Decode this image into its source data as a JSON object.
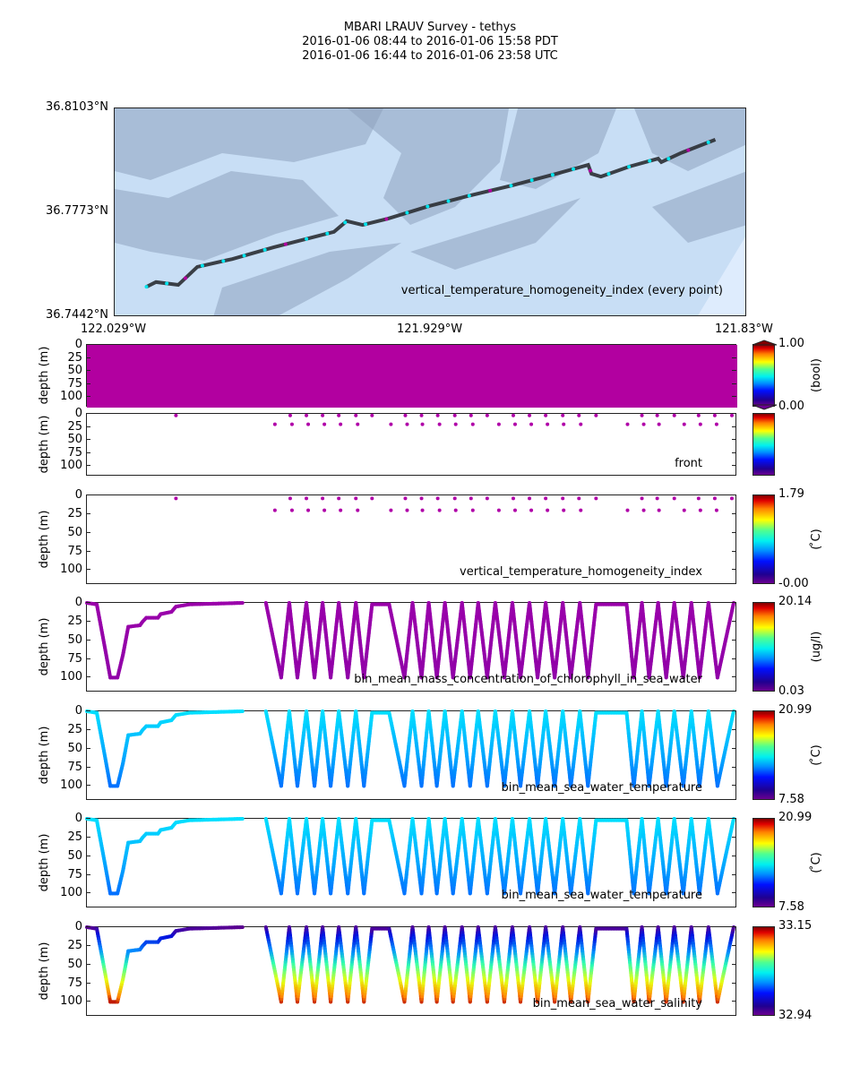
{
  "title": {
    "line1": "MBARI LRAUV Survey - tethys",
    "line2": "2016-01-06 08:44  to  2016-01-06 15:58 PDT",
    "line3": "2016-01-06 16:44  to  2016-01-06 23:58 UTC"
  },
  "colors": {
    "map_water": "#c8def5",
    "map_shade": "#8ea3bd",
    "track": "#2a2e33",
    "marker_cyan": "#00e5ee",
    "marker_magenta": "#b000a0",
    "bool_fill": "#b200a0",
    "dot": "#b000a8"
  },
  "depth_ticks": [
    "0",
    "25",
    "50",
    "75",
    "100"
  ],
  "depth_label": "depth (m)",
  "chart_data": {
    "map": {
      "type": "line",
      "lat_ticks": [
        "36.8103°N",
        "36.7773°N",
        "36.7442°N"
      ],
      "lon_ticks": [
        "122.029°W",
        "121.929°W",
        "121.83°W"
      ],
      "lon_range": [
        -122.029,
        -121.83
      ],
      "lat_range": [
        36.7442,
        36.8103
      ],
      "label": "vertical_temperature_homogeneity_index (every point)",
      "track": [
        [
          -122.019,
          36.7538
        ],
        [
          -122.016,
          36.7553
        ],
        [
          -122.009,
          36.7544
        ],
        [
          -122.003,
          36.7601
        ],
        [
          -121.992,
          36.7626
        ],
        [
          -121.979,
          36.7663
        ],
        [
          -121.96,
          36.7712
        ],
        [
          -121.956,
          36.7746
        ],
        [
          -121.951,
          36.7734
        ],
        [
          -121.943,
          36.7754
        ],
        [
          -121.93,
          36.7794
        ],
        [
          -121.918,
          36.7825
        ],
        [
          -121.904,
          36.7859
        ],
        [
          -121.89,
          36.7896
        ],
        [
          -121.88,
          36.7924
        ],
        [
          -121.879,
          36.7896
        ],
        [
          -121.876,
          36.7887
        ],
        [
          -121.867,
          36.7919
        ],
        [
          -121.858,
          36.7944
        ],
        [
          -121.857,
          36.7933
        ],
        [
          -121.851,
          36.7961
        ],
        [
          -121.84,
          36.8004
        ]
      ]
    },
    "time_range_h": [
      0,
      7.23
    ],
    "depth_range": [
      0,
      120
    ],
    "trajectory": {
      "time_h": [
        0,
        0.11,
        0.2,
        0.26,
        0.34,
        0.4,
        0.46,
        0.59,
        0.62,
        0.66,
        0.79,
        0.82,
        0.94,
        0.99,
        1.14,
        1.73,
        null,
        1.99,
        2.16,
        2.25,
        2.34,
        2.44,
        2.53,
        2.62,
        2.71,
        2.8,
        2.9,
        2.99,
        3.08,
        3.17,
        3.36,
        3.53,
        3.62,
        3.72,
        3.8,
        3.89,
        3.98,
        4.07,
        4.17,
        4.26,
        4.35,
        4.45,
        4.54,
        4.64,
        4.73,
        4.82,
        4.92,
        5.01,
        5.1,
        5.2,
        5.29,
        5.38,
        5.48,
        5.57,
        5.66,
        6.0,
        6.08,
        6.17,
        6.25,
        6.35,
        6.44,
        6.53,
        6.63,
        6.72,
        6.81,
        6.91,
        7.01,
        7.19
      ],
      "depth_m": [
        0,
        2,
        60,
        100,
        100,
        70,
        32,
        30,
        25,
        20,
        20,
        15,
        12,
        5,
        2,
        0,
        null,
        0,
        100,
        0,
        100,
        0,
        100,
        0,
        100,
        0,
        100,
        0,
        100,
        2,
        2,
        100,
        0,
        100,
        0,
        100,
        0,
        100,
        0,
        100,
        0,
        100,
        0,
        100,
        0,
        100,
        0,
        100,
        0,
        100,
        0,
        100,
        0,
        100,
        2,
        2,
        100,
        0,
        100,
        0,
        100,
        0,
        100,
        0,
        100,
        0,
        100,
        0
      ]
    },
    "panels": [
      {
        "kind": "fill",
        "label": "",
        "units": "(bool)",
        "cmax": "1.00",
        "cmin": "0.00",
        "extend": true
      },
      {
        "kind": "dots",
        "label": "front",
        "units": "",
        "cmax": "",
        "cmin": "",
        "surface_time_h": [
          0.99,
          2.26,
          2.44,
          2.62,
          2.8,
          2.99,
          3.17,
          3.54,
          3.72,
          3.9,
          4.09,
          4.27,
          4.45,
          4.74,
          4.92,
          5.1,
          5.29,
          5.47,
          5.66,
          6.17,
          6.34,
          6.53,
          6.8,
          6.98,
          7.17
        ],
        "surface_depth_m": 3,
        "sub_time_h": [
          2.09,
          2.28,
          2.46,
          2.64,
          2.82,
          3.01,
          3.38,
          3.56,
          3.73,
          3.92,
          4.1,
          4.29,
          4.58,
          4.76,
          4.94,
          5.12,
          5.3,
          5.49,
          6.01,
          6.19,
          6.36,
          6.64,
          6.82,
          7.0
        ],
        "sub_depth_m": 20
      },
      {
        "kind": "dots",
        "label": "vertical_temperature_homogeneity_index",
        "units": "( ̊C)",
        "cmax": "1.79",
        "cmin": "-0.00",
        "surface_time_h": [
          0.99,
          2.26,
          2.44,
          2.62,
          2.8,
          2.99,
          3.17,
          3.54,
          3.72,
          3.9,
          4.09,
          4.27,
          4.45,
          4.74,
          4.92,
          5.1,
          5.29,
          5.47,
          5.66,
          6.17,
          6.34,
          6.53,
          6.8,
          6.98,
          7.17
        ],
        "surface_depth_m": 4,
        "sub_time_h": [
          2.09,
          2.28,
          2.46,
          2.64,
          2.82,
          3.01,
          3.38,
          3.56,
          3.73,
          3.92,
          4.1,
          4.29,
          4.58,
          4.76,
          4.94,
          5.12,
          5.3,
          5.49,
          6.01,
          6.19,
          6.36,
          6.64,
          6.82,
          7.0
        ],
        "sub_depth_m": 20
      },
      {
        "kind": "track",
        "label": "bin_mean_mass_concentration_of_chlorophyll_in_sea_water",
        "units": "(ug/l)",
        "cmax": "20.14",
        "cmin": "0.03",
        "depth_colors": [
          [
            0,
            "#9a00aa"
          ],
          [
            100,
            "#9000a8"
          ]
        ]
      },
      {
        "kind": "track",
        "label": "bin_mean_sea_water_temperature",
        "units": "( ̊C)",
        "cmax": "20.99",
        "cmin": "7.58",
        "depth_colors": [
          [
            0,
            "#00e0ff"
          ],
          [
            60,
            "#00a8ff"
          ],
          [
            100,
            "#0070ff"
          ],
          [
            110,
            "#0030e0"
          ]
        ]
      },
      {
        "kind": "track",
        "label": "bin_mean_sea_water_temperature",
        "units": "( ̊C)",
        "cmax": "20.99",
        "cmin": "7.58",
        "depth_colors": [
          [
            0,
            "#00e0ff"
          ],
          [
            60,
            "#00a8ff"
          ],
          [
            100,
            "#0070ff"
          ],
          [
            110,
            "#0030e0"
          ]
        ]
      },
      {
        "kind": "track",
        "label": "bin_mean_sea_water_salinity",
        "units": "",
        "cmax": "33.15",
        "cmin": "32.94",
        "depth_colors": [
          [
            0,
            "#5a0090"
          ],
          [
            12,
            "#0010e0"
          ],
          [
            32,
            "#0090ff"
          ],
          [
            50,
            "#30ffb0"
          ],
          [
            72,
            "#e8ff10"
          ],
          [
            92,
            "#ff8000"
          ],
          [
            102,
            "#b00000"
          ]
        ]
      }
    ]
  }
}
